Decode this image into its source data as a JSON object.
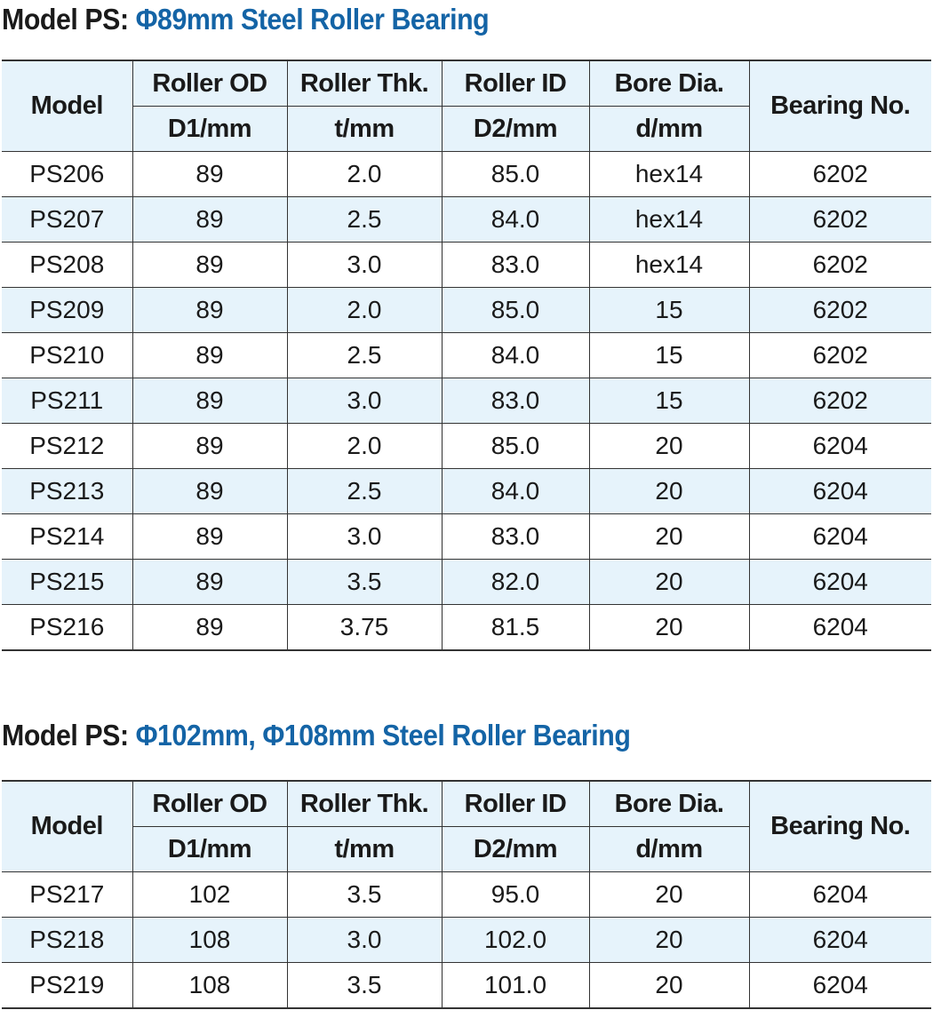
{
  "sections": [
    {
      "title_prefix": "Model PS:",
      "title_accent": "Φ89mm Steel Roller Bearing",
      "headers": {
        "model": "Model",
        "roller_od": "Roller OD",
        "roller_od_unit": "D1/mm",
        "roller_thk": "Roller Thk.",
        "roller_thk_unit": "t/mm",
        "roller_id": "Roller ID",
        "roller_id_unit": "D2/mm",
        "bore_dia": "Bore Dia.",
        "bore_dia_unit": "d/mm",
        "bearing_no": "Bearing No."
      },
      "rows": [
        [
          "PS206",
          "89",
          "2.0",
          "85.0",
          "hex14",
          "6202"
        ],
        [
          "PS207",
          "89",
          "2.5",
          "84.0",
          "hex14",
          "6202"
        ],
        [
          "PS208",
          "89",
          "3.0",
          "83.0",
          "hex14",
          "6202"
        ],
        [
          "PS209",
          "89",
          "2.0",
          "85.0",
          "15",
          "6202"
        ],
        [
          "PS210",
          "89",
          "2.5",
          "84.0",
          "15",
          "6202"
        ],
        [
          "PS211",
          "89",
          "3.0",
          "83.0",
          "15",
          "6202"
        ],
        [
          "PS212",
          "89",
          "2.0",
          "85.0",
          "20",
          "6204"
        ],
        [
          "PS213",
          "89",
          "2.5",
          "84.0",
          "20",
          "6204"
        ],
        [
          "PS214",
          "89",
          "3.0",
          "83.0",
          "20",
          "6204"
        ],
        [
          "PS215",
          "89",
          "3.5",
          "82.0",
          "20",
          "6204"
        ],
        [
          "PS216",
          "89",
          "3.75",
          "81.5",
          "20",
          "6204"
        ]
      ]
    },
    {
      "title_prefix": "Model PS:",
      "title_accent": "Φ102mm, Φ108mm Steel Roller Bearing",
      "headers": {
        "model": "Model",
        "roller_od": "Roller OD",
        "roller_od_unit": "D1/mm",
        "roller_thk": "Roller Thk.",
        "roller_thk_unit": "t/mm",
        "roller_id": "Roller ID",
        "roller_id_unit": "D2/mm",
        "bore_dia": "Bore Dia.",
        "bore_dia_unit": "d/mm",
        "bearing_no": "Bearing No."
      },
      "rows": [
        [
          "PS217",
          "102",
          "3.5",
          "95.0",
          "20",
          "6204"
        ],
        [
          "PS218",
          "108",
          "3.0",
          "102.0",
          "20",
          "6204"
        ],
        [
          "PS219",
          "108",
          "3.5",
          "101.0",
          "20",
          "6204"
        ]
      ]
    }
  ],
  "colors": {
    "accent": "#1464a6",
    "header_fill": "#e6f3fb",
    "row_alt_fill": "#e6f3fb"
  }
}
